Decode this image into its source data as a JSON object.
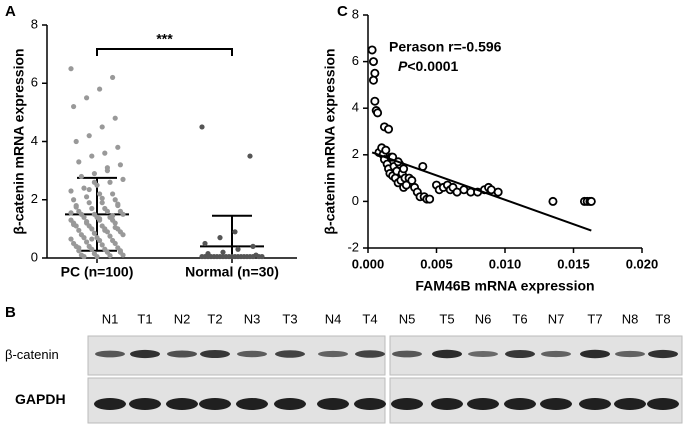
{
  "chart_data": [
    {
      "type": "dotplot",
      "panel": "A",
      "ylabel": "β-catenin mRNA expression",
      "categories": [
        "PC (n=100)",
        "Normal (n=30)"
      ],
      "values": [
        [
          6.5,
          6.2,
          5.8,
          5.5,
          5.2,
          4.8,
          4.5,
          4.2,
          4.0,
          3.8,
          3.6,
          3.5,
          3.3,
          3.2,
          3.0,
          2.9,
          2.8,
          2.7,
          2.6,
          2.5,
          2.4,
          2.3,
          2.2,
          2.2,
          2.1,
          2.0,
          2.0,
          1.9,
          1.9,
          1.8,
          1.8,
          1.7,
          1.7,
          1.6,
          1.6,
          1.6,
          1.5,
          1.5,
          1.5,
          1.4,
          1.4,
          1.4,
          1.3,
          1.3,
          1.3,
          1.2,
          1.2,
          1.2,
          1.1,
          1.1,
          1.1,
          1.0,
          1.0,
          1.0,
          0.95,
          0.9,
          0.9,
          0.85,
          0.8,
          0.8,
          0.75,
          0.7,
          0.7,
          0.65,
          0.6,
          0.6,
          0.55,
          0.5,
          0.5,
          0.45,
          0.4,
          0.4,
          0.35,
          0.3,
          0.3,
          0.25,
          0.2,
          0.2,
          0.15,
          0.1,
          0.1,
          0.08,
          0.05,
          0.05,
          1.55,
          1.45,
          1.35,
          1.25,
          1.15,
          1.05,
          2.05,
          2.35,
          1.75,
          1.85,
          0.95,
          0.65,
          0.35,
          0.25,
          3.1,
          2.6
        ],
        [
          4.5,
          3.5,
          0.9,
          0.7,
          0.5,
          0.4,
          0.3,
          0.2,
          0.15,
          0.1,
          0.05,
          0.05,
          0.05,
          0.05,
          0.05,
          0.05,
          0.05,
          0.05,
          0.05,
          0.05,
          0.05,
          0.05,
          0.05,
          0.05,
          0.05,
          0.05,
          0.05,
          0.05,
          0.05,
          0.05
        ]
      ],
      "colors": [
        "#999999",
        "#555555"
      ],
      "means": [
        1.5,
        0.4
      ],
      "sds": [
        1.25,
        1.05
      ],
      "annotation": "***",
      "ylim": [
        0,
        8
      ],
      "yticks": [
        0,
        2,
        4,
        6,
        8
      ]
    },
    {
      "type": "scatter",
      "panel": "C",
      "ylabel": "β-catenin mRNA expression",
      "xlabel": "FAM46B mRNA expression",
      "annotation": "Perason r=-0.596",
      "p_value": [
        "P",
        "<0.0001"
      ],
      "x": [
        0.0003,
        0.0004,
        0.0005,
        0.0004,
        0.0005,
        0.0006,
        0.0007,
        0.0012,
        0.0015,
        0.0008,
        0.001,
        0.0011,
        0.0012,
        0.0013,
        0.0014,
        0.0015,
        0.0016,
        0.0017,
        0.0018,
        0.0019,
        0.002,
        0.0021,
        0.0022,
        0.0023,
        0.0024,
        0.0025,
        0.0026,
        0.0027,
        0.0028,
        0.003,
        0.0032,
        0.0034,
        0.0036,
        0.0038,
        0.004,
        0.0041,
        0.0043,
        0.0045,
        0.005,
        0.0052,
        0.0055,
        0.0058,
        0.006,
        0.0062,
        0.0065,
        0.007,
        0.0075,
        0.008,
        0.0085,
        0.0088,
        0.009,
        0.0095,
        0.0135,
        0.0158,
        0.016,
        0.0162,
        0.0163,
        0.0022,
        0.0018,
        0.0026
      ],
      "y": [
        6.5,
        6.0,
        5.5,
        5.2,
        4.3,
        3.9,
        3.8,
        3.2,
        3.1,
        2.1,
        2.3,
        2.0,
        1.8,
        2.2,
        1.6,
        1.4,
        1.2,
        1.9,
        1.1,
        1.5,
        1.0,
        1.3,
        0.8,
        1.6,
        0.9,
        1.2,
        0.6,
        1.0,
        0.7,
        1.0,
        0.9,
        0.6,
        0.4,
        0.2,
        1.5,
        0.2,
        0.1,
        0.1,
        0.7,
        0.5,
        0.6,
        0.7,
        0.5,
        0.6,
        0.4,
        0.5,
        0.4,
        0.4,
        0.5,
        0.6,
        0.5,
        0.4,
        0.0,
        0.0,
        0.0,
        0.0,
        0.0,
        1.7,
        1.9,
        1.4
      ],
      "fit": {
        "x": [
          0.0003,
          0.0163
        ],
        "y": [
          2.1,
          -1.25
        ]
      },
      "xlim": [
        0,
        0.02
      ],
      "ylim": [
        -2,
        8
      ],
      "xticks": [
        {
          "value": 0,
          "label": "0.000"
        },
        {
          "value": 0.005,
          "label": "0.005"
        },
        {
          "value": 0.01,
          "label": "0.010"
        },
        {
          "value": 0.015,
          "label": "0.015"
        },
        {
          "value": 0.02,
          "label": "0.020"
        }
      ],
      "yticks": [
        -2,
        0,
        2,
        4,
        6,
        8
      ]
    }
  ],
  "blot": {
    "panel": "B",
    "lanes": [
      "N1",
      "T1",
      "N2",
      "T2",
      "N3",
      "T3",
      "N4",
      "T4",
      "N5",
      "T5",
      "N6",
      "T6",
      "N7",
      "T7",
      "N8",
      "T8"
    ],
    "rows": [
      "β-catenin",
      "GAPDH"
    ]
  }
}
